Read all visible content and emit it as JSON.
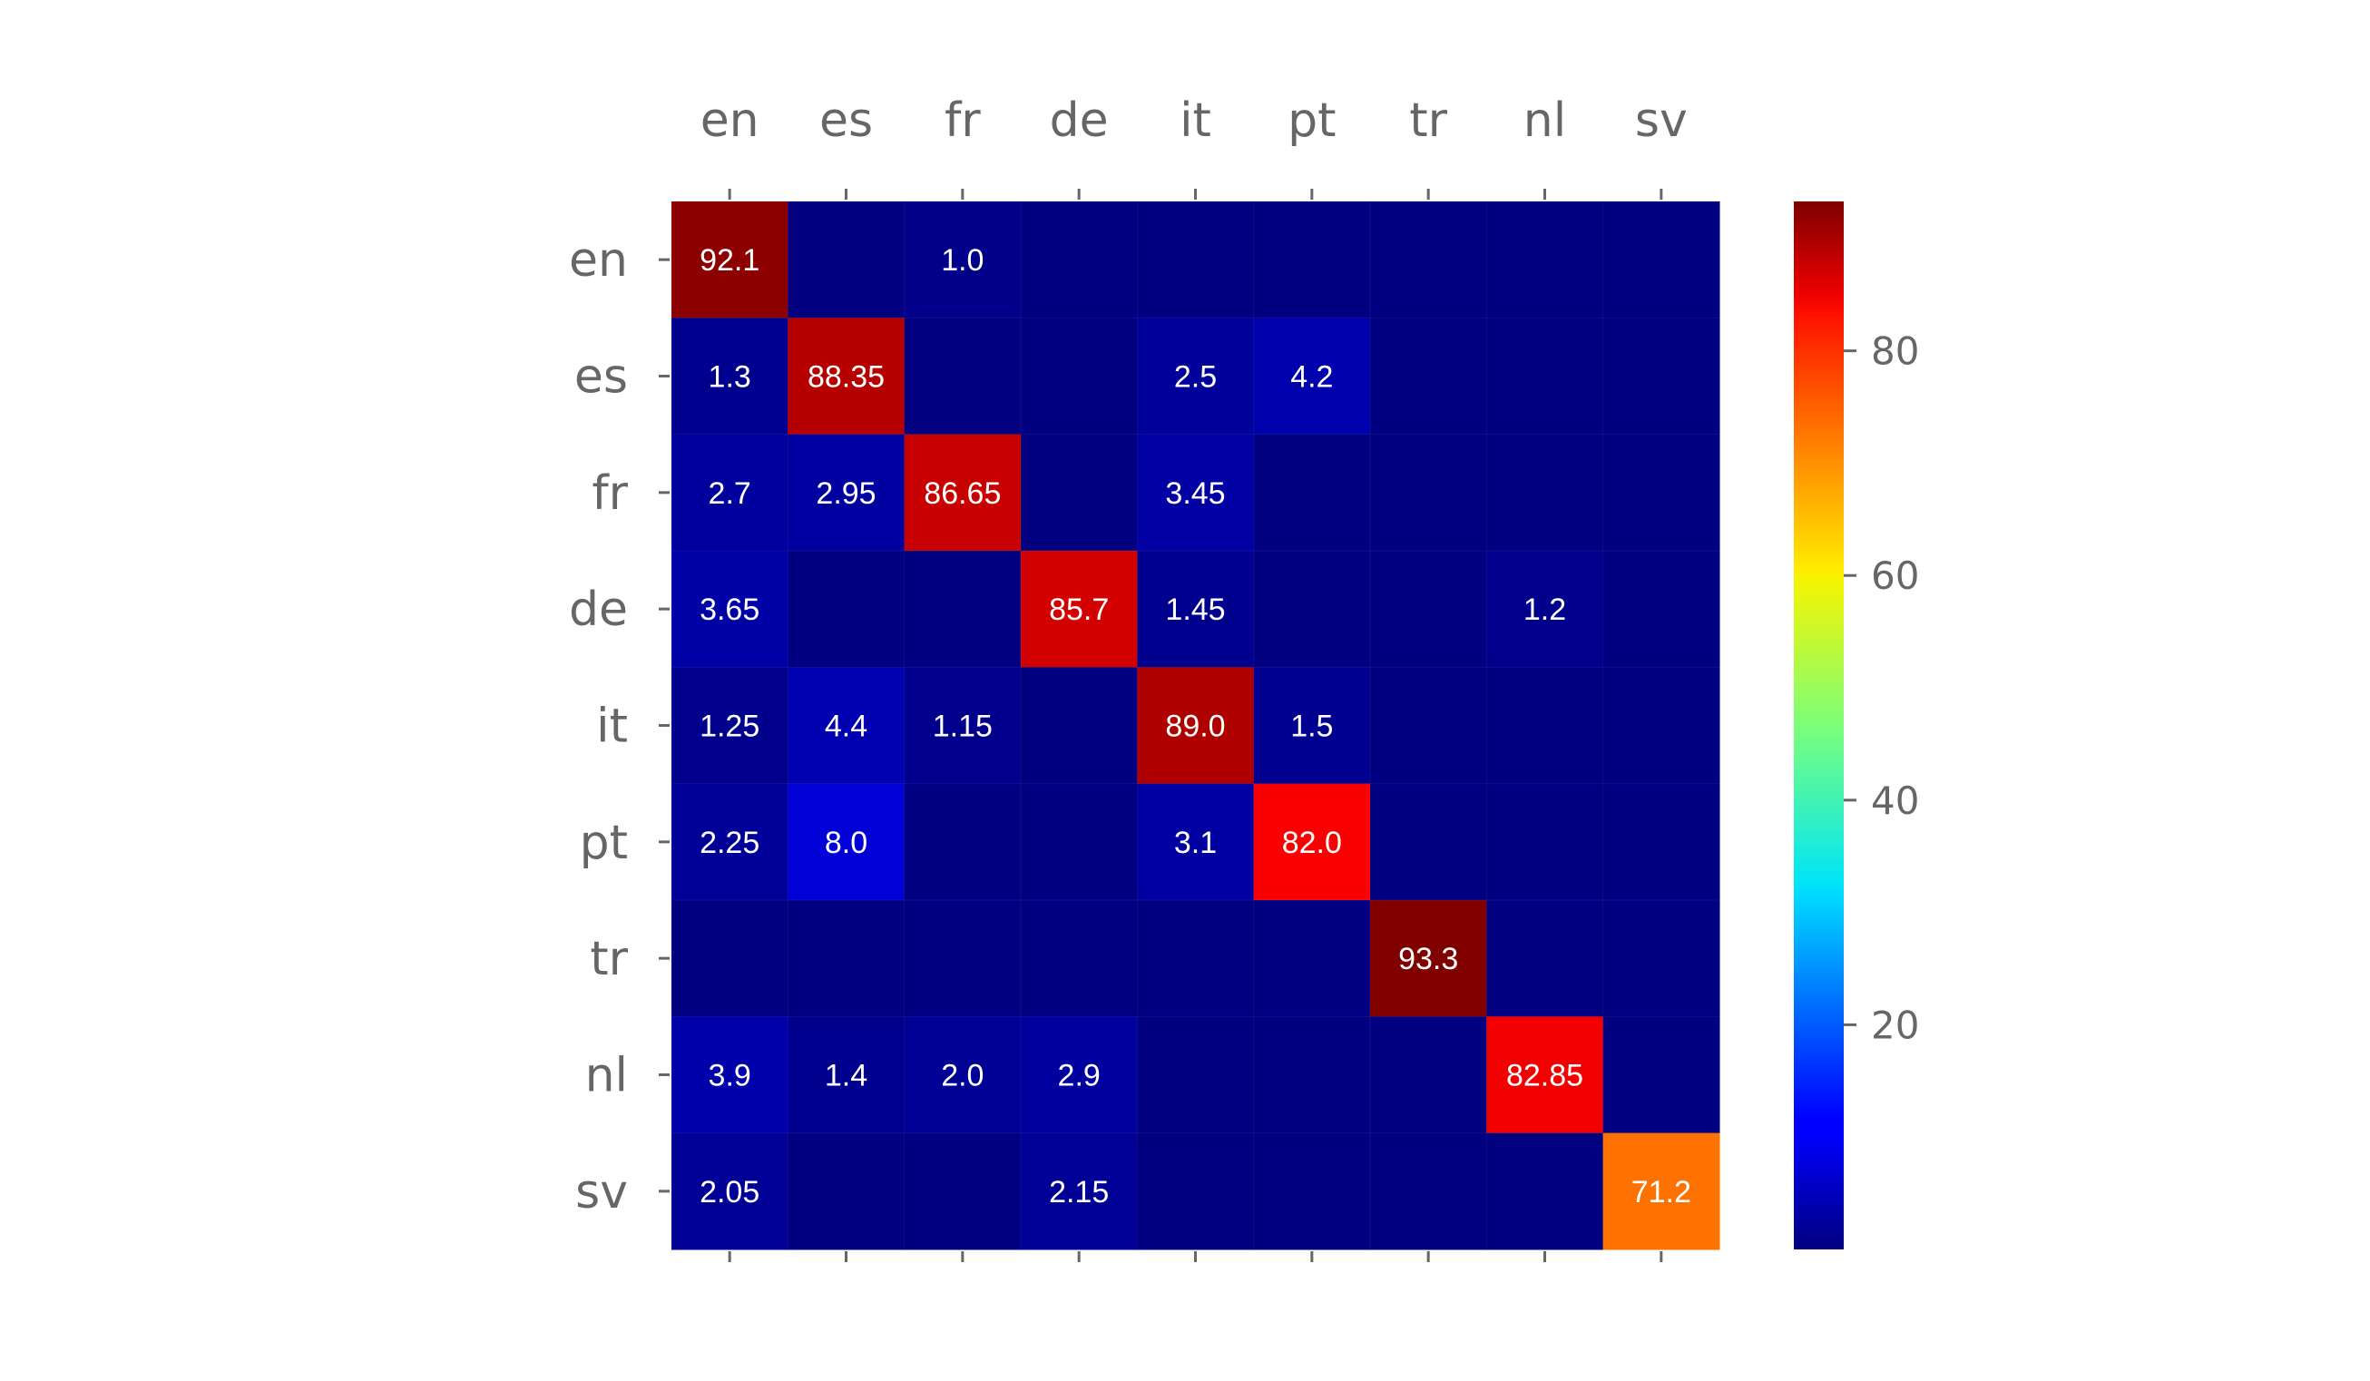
{
  "chart_data": {
    "type": "heatmap",
    "title": "",
    "xlabel": "",
    "ylabel": "",
    "x_categories": [
      "en",
      "es",
      "fr",
      "de",
      "it",
      "pt",
      "tr",
      "nl",
      "sv"
    ],
    "y_categories": [
      "en",
      "es",
      "fr",
      "de",
      "it",
      "pt",
      "tr",
      "nl",
      "sv"
    ],
    "values": [
      [
        92.1,
        0,
        1.0,
        0,
        0,
        0,
        0,
        0,
        0
      ],
      [
        1.3,
        88.35,
        0,
        0,
        2.5,
        4.2,
        0,
        0,
        0
      ],
      [
        2.7,
        2.95,
        86.65,
        0,
        3.45,
        0,
        0,
        0,
        0
      ],
      [
        3.65,
        0,
        0,
        85.7,
        1.45,
        0,
        0,
        1.2,
        0
      ],
      [
        1.25,
        4.4,
        1.15,
        0,
        89.0,
        1.5,
        0,
        0,
        0
      ],
      [
        2.25,
        8.0,
        0,
        0,
        3.1,
        82.0,
        0,
        0,
        0
      ],
      [
        0,
        0,
        0,
        0,
        0,
        0,
        93.3,
        0,
        0
      ],
      [
        3.9,
        1.4,
        2.0,
        2.9,
        0,
        0,
        0,
        82.85,
        0
      ],
      [
        2.05,
        0,
        0,
        2.15,
        0,
        0,
        0,
        0,
        71.2
      ]
    ],
    "cell_labels": [
      [
        "92.1",
        "",
        "1.0",
        "",
        "",
        "",
        "",
        "",
        ""
      ],
      [
        "1.3",
        "88.35",
        "",
        "",
        "2.5",
        "4.2",
        "",
        "",
        ""
      ],
      [
        "2.7",
        "2.95",
        "86.65",
        "",
        "3.45",
        "",
        "",
        "",
        ""
      ],
      [
        "3.65",
        "",
        "",
        "85.7",
        "1.45",
        "",
        "",
        "1.2",
        ""
      ],
      [
        "1.25",
        "4.4",
        "1.15",
        "",
        "89.0",
        "1.5",
        "",
        "",
        ""
      ],
      [
        "2.25",
        "8.0",
        "",
        "",
        "3.1",
        "82.0",
        "",
        "",
        ""
      ],
      [
        "",
        "",
        "",
        "",
        "",
        "",
        "93.3",
        "",
        ""
      ],
      [
        "3.9",
        "1.4",
        "2.0",
        "2.9",
        "",
        "",
        "",
        "82.85",
        ""
      ],
      [
        "2.05",
        "",
        "",
        "2.15",
        "",
        "",
        "",
        "",
        "71.2"
      ]
    ],
    "colormap": "jet",
    "vmin": 0,
    "vmax": 93.3,
    "colorbar_ticks": [
      20,
      40,
      60,
      80
    ],
    "x_axis_position": "top",
    "colorbar_position": "right",
    "grid": false
  }
}
